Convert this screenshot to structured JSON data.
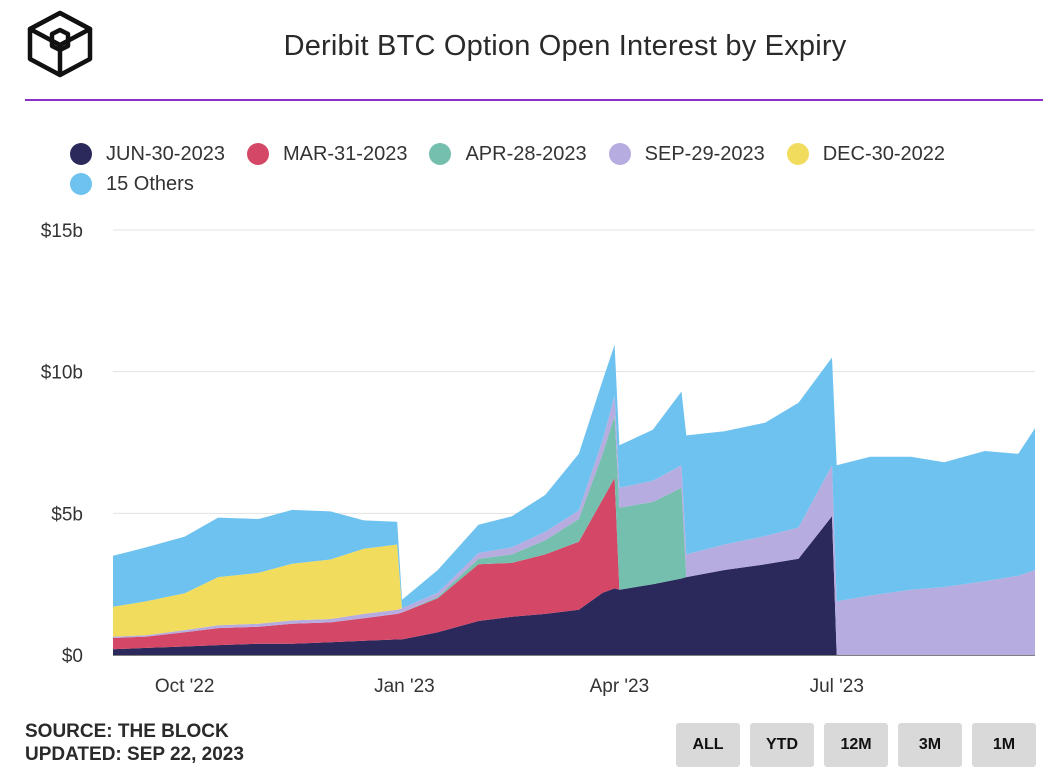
{
  "header": {
    "title": "Deribit BTC Option Open Interest by Expiry"
  },
  "footer": {
    "source": "SOURCE: THE BLOCK",
    "updated": "UPDATED: SEP 22, 2023"
  },
  "range_buttons": [
    "ALL",
    "YTD",
    "12M",
    "3M",
    "1M"
  ],
  "colors": {
    "accent_rule": "#8c2fc9",
    "jun": "#2b285b",
    "mar": "#d54766",
    "apr": "#74bfae",
    "sep": "#b6ace0",
    "dec": "#f2dc5d",
    "others": "#6ec2ef"
  },
  "chart_data": {
    "type": "area",
    "stacked": true,
    "title": "Deribit BTC Option Open Interest by Expiry",
    "x_unit": "date",
    "x_ticks": [
      "Oct '22",
      "Jan '23",
      "Apr '23",
      "Jul '23"
    ],
    "y_ticks": [
      "$0",
      "$5b",
      "$10b",
      "$15b"
    ],
    "ylim": [
      0,
      15
    ],
    "y_unit": "USD billions",
    "grid": true,
    "legend_position": "top-left",
    "x": [
      "2022-09-01",
      "2022-09-15",
      "2022-10-01",
      "2022-10-15",
      "2022-11-01",
      "2022-11-15",
      "2022-12-01",
      "2022-12-15",
      "2022-12-29",
      "2022-12-31",
      "2023-01-15",
      "2023-02-01",
      "2023-02-15",
      "2023-03-01",
      "2023-03-15",
      "2023-03-25",
      "2023-03-30",
      "2023-04-01",
      "2023-04-15",
      "2023-04-27",
      "2023-04-29",
      "2023-05-15",
      "2023-06-01",
      "2023-06-15",
      "2023-06-29",
      "2023-07-01",
      "2023-07-15",
      "2023-08-01",
      "2023-08-15",
      "2023-09-01",
      "2023-09-15",
      "2023-09-22"
    ],
    "series": [
      {
        "name": "JUN-30-2023",
        "color": "#2b285b",
        "values": [
          0.2,
          0.25,
          0.3,
          0.35,
          0.4,
          0.4,
          0.45,
          0.5,
          0.55,
          0.55,
          0.8,
          1.2,
          1.35,
          1.45,
          1.6,
          2.2,
          2.35,
          2.3,
          2.5,
          2.7,
          2.75,
          3.0,
          3.2,
          3.4,
          4.9,
          0,
          0,
          0,
          0,
          0,
          0,
          0
        ]
      },
      {
        "name": "MAR-31-2023",
        "color": "#d54766",
        "values": [
          0.4,
          0.4,
          0.5,
          0.6,
          0.6,
          0.7,
          0.7,
          0.8,
          0.9,
          0.95,
          1.2,
          2.0,
          1.9,
          2.1,
          2.4,
          3.3,
          3.9,
          0,
          0,
          0,
          0,
          0,
          0,
          0,
          0,
          0,
          0,
          0,
          0,
          0,
          0,
          0
        ]
      },
      {
        "name": "APR-28-2023",
        "color": "#74bfae",
        "values": [
          0,
          0,
          0,
          0,
          0,
          0,
          0,
          0,
          0,
          0,
          0.05,
          0.2,
          0.3,
          0.5,
          0.8,
          1.6,
          2.2,
          2.9,
          2.9,
          3.2,
          0,
          0,
          0,
          0,
          0,
          0,
          0,
          0,
          0,
          0,
          0,
          0
        ]
      },
      {
        "name": "SEP-29-2023",
        "color": "#b6ace0",
        "values": [
          0.05,
          0.05,
          0.08,
          0.1,
          0.1,
          0.12,
          0.12,
          0.15,
          0.15,
          0.15,
          0.15,
          0.2,
          0.25,
          0.3,
          0.3,
          0.5,
          0.7,
          0.7,
          0.75,
          0.8,
          0.8,
          0.9,
          1.0,
          1.1,
          1.8,
          1.9,
          2.1,
          2.3,
          2.4,
          2.6,
          2.8,
          3.0
        ]
      },
      {
        "name": "DEC-30-2022",
        "color": "#f2dc5d",
        "values": [
          1.05,
          1.2,
          1.3,
          1.7,
          1.8,
          2.0,
          2.1,
          2.3,
          2.3,
          0,
          0,
          0,
          0,
          0,
          0,
          0,
          0,
          0,
          0,
          0,
          0,
          0,
          0,
          0,
          0,
          0,
          0,
          0,
          0,
          0,
          0,
          0
        ]
      },
      {
        "name": "15 Others",
        "color": "#6ec2ef",
        "values": [
          1.8,
          1.9,
          2.0,
          2.1,
          1.9,
          1.9,
          1.7,
          1.0,
          0.8,
          0.3,
          0.8,
          1.0,
          1.1,
          1.3,
          2.0,
          2.1,
          1.8,
          1.5,
          1.8,
          2.6,
          4.2,
          4.0,
          4.0,
          4.4,
          3.8,
          4.8,
          4.9,
          4.7,
          4.4,
          4.6,
          4.3,
          5.0
        ]
      }
    ]
  }
}
